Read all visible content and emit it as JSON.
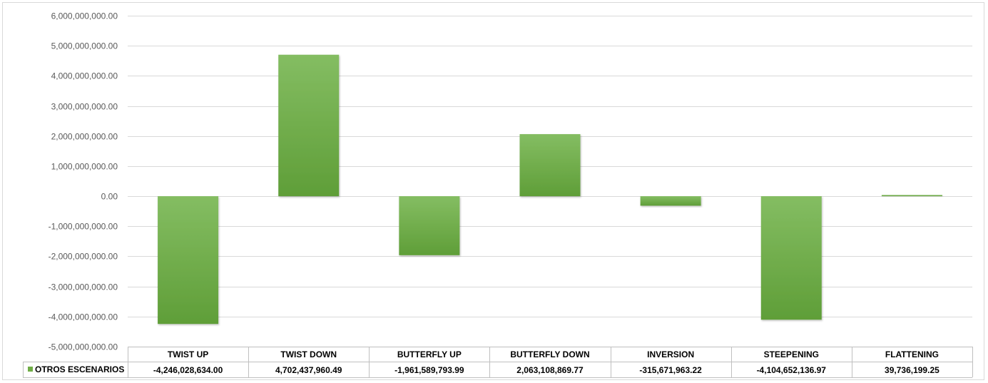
{
  "chart_data": {
    "type": "bar",
    "categories": [
      "TWIST UP",
      "TWIST DOWN",
      "BUTTERFLY UP",
      "BUTTERFLY DOWN",
      "INVERSION",
      "STEEPENING",
      "FLATTENING"
    ],
    "series": [
      {
        "name": "OTROS ESCENARIOS",
        "values": [
          -4246028634.0,
          4702437960.49,
          -1961589793.99,
          2063108869.77,
          -315671963.22,
          -4104652136.97,
          39736199.25
        ],
        "display_values": [
          "-4,246,028,634.00",
          "4,702,437,960.49",
          "-1,961,589,793.99",
          "2,063,108,869.77",
          "-315,671,963.22",
          "-4,104,652,136.97",
          "39,736,199.25"
        ],
        "color": "#70ad47",
        "color_light": "#84bd62",
        "color_dark": "#5f9e38"
      }
    ],
    "ylim": [
      -5000000000,
      6000000000
    ],
    "y_ticks": [
      6000000000,
      5000000000,
      4000000000,
      3000000000,
      2000000000,
      1000000000,
      0,
      -1000000000,
      -2000000000,
      -3000000000,
      -4000000000,
      -5000000000
    ],
    "y_tick_labels": [
      "6,000,000,000.00",
      "5,000,000,000.00",
      "4,000,000,000.00",
      "3,000,000,000.00",
      "2,000,000,000.00",
      "1,000,000,000.00",
      "0.00",
      "-1,000,000,000.00",
      "-2,000,000,000.00",
      "-3,000,000,000.00",
      "-4,000,000,000.00",
      "-5,000,000,000.00"
    ],
    "grid": true,
    "legend": "data-table",
    "title": "",
    "xlabel": "",
    "ylabel": "",
    "colors": {
      "gridline": "#d9d9d9",
      "table_border": "#bfbfbf",
      "tick_text": "#595959"
    }
  }
}
